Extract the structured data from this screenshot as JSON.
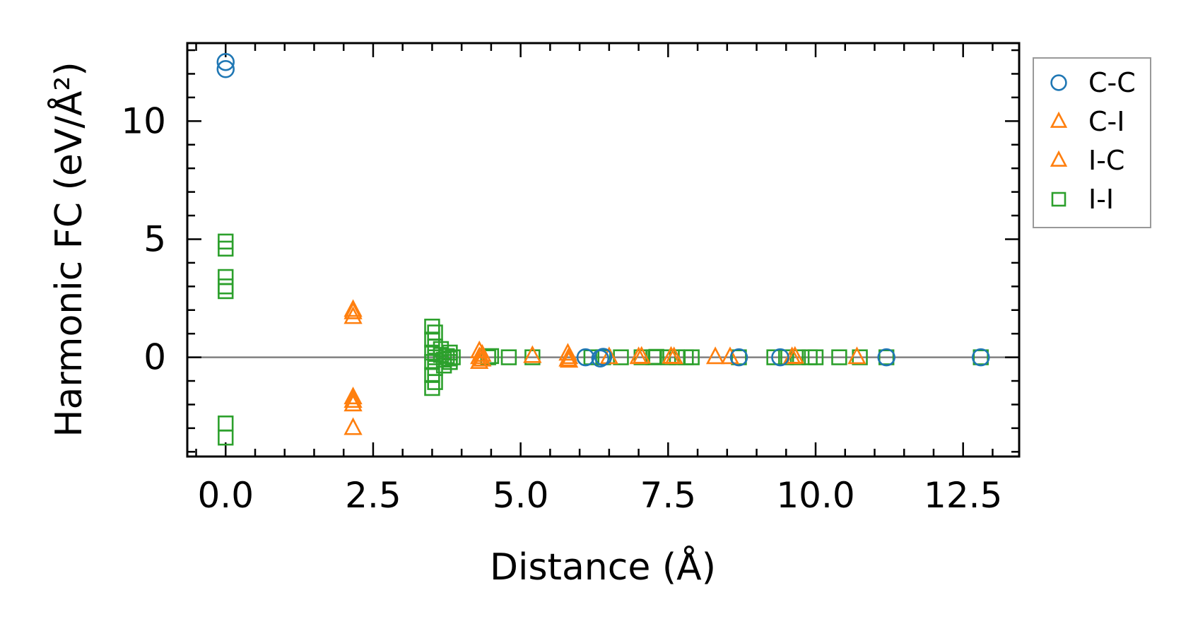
{
  "chart_data": {
    "type": "scatter",
    "title": "",
    "xlabel": "Distance (Å)",
    "ylabel": "Harmonic FC (eV/Å²)",
    "xlim": [
      -0.65,
      13.45
    ],
    "ylim": [
      -4.2,
      13.3
    ],
    "xticks": [
      0.0,
      2.5,
      5.0,
      7.5,
      10.0,
      12.5
    ],
    "xtick_labels": [
      "0.0",
      "2.5",
      "5.0",
      "7.5",
      "10.0",
      "12.5"
    ],
    "yticks": [
      0,
      5,
      10
    ],
    "ytick_labels": [
      "0",
      "5",
      "10"
    ],
    "zero_line": true,
    "grid": false,
    "legend_position": "outside-right",
    "series": [
      {
        "name": "C-C",
        "marker": "circle",
        "color": "#1f77b4",
        "points": [
          [
            0.0,
            12.5
          ],
          [
            0.0,
            12.2
          ],
          [
            6.1,
            0.0
          ],
          [
            6.35,
            -0.05
          ],
          [
            6.4,
            0.02
          ],
          [
            8.7,
            0.0
          ],
          [
            9.4,
            0.0
          ],
          [
            11.2,
            0.0
          ],
          [
            12.8,
            0.0
          ]
        ]
      },
      {
        "name": "C-I",
        "marker": "triangle",
        "color": "#ff7f0e",
        "points": [
          [
            2.16,
            2.0
          ],
          [
            2.16,
            1.7
          ],
          [
            2.16,
            -1.7
          ],
          [
            2.16,
            -2.0
          ],
          [
            2.16,
            -3.0
          ],
          [
            4.3,
            0.25
          ],
          [
            4.3,
            0.0
          ],
          [
            4.3,
            -0.2
          ],
          [
            5.2,
            0.05
          ],
          [
            5.8,
            0.15
          ],
          [
            5.8,
            -0.1
          ],
          [
            6.5,
            0.0
          ],
          [
            7.0,
            0.0
          ],
          [
            7.6,
            0.0
          ],
          [
            8.3,
            0.0
          ],
          [
            8.55,
            0.0
          ],
          [
            9.6,
            0.0
          ],
          [
            10.7,
            0.0
          ]
        ]
      },
      {
        "name": "I-C",
        "marker": "triangle",
        "color": "#ff7f0e",
        "points": [
          [
            2.16,
            1.9
          ],
          [
            2.16,
            -1.85
          ],
          [
            4.35,
            0.1
          ],
          [
            4.35,
            -0.1
          ],
          [
            5.82,
            0.0
          ],
          [
            5.82,
            -0.15
          ],
          [
            7.05,
            0.02
          ],
          [
            7.55,
            0.02
          ],
          [
            9.65,
            0.02
          ]
        ]
      },
      {
        "name": "I-I",
        "marker": "square",
        "color": "#2ca02c",
        "points": [
          [
            0.0,
            4.9
          ],
          [
            0.0,
            4.6
          ],
          [
            0.0,
            3.4
          ],
          [
            0.0,
            3.0
          ],
          [
            0.0,
            2.8
          ],
          [
            0.0,
            -2.8
          ],
          [
            0.0,
            -3.4
          ],
          [
            3.5,
            1.3
          ],
          [
            3.55,
            1.05
          ],
          [
            3.5,
            0.75
          ],
          [
            3.55,
            0.45
          ],
          [
            3.5,
            0.2
          ],
          [
            3.55,
            0.0
          ],
          [
            3.5,
            -0.2
          ],
          [
            3.55,
            -0.45
          ],
          [
            3.5,
            -0.75
          ],
          [
            3.55,
            -1.05
          ],
          [
            3.5,
            -1.3
          ],
          [
            3.65,
            0.1
          ],
          [
            3.7,
            -0.1
          ],
          [
            3.75,
            0.05
          ],
          [
            3.8,
            -0.05
          ],
          [
            3.85,
            0.0
          ],
          [
            3.65,
            0.35
          ],
          [
            3.7,
            -0.35
          ],
          [
            3.8,
            0.2
          ],
          [
            3.8,
            -0.2
          ],
          [
            4.45,
            0.0
          ],
          [
            4.5,
            0.05
          ],
          [
            4.8,
            0.0
          ],
          [
            5.2,
            0.0
          ],
          [
            6.2,
            0.0
          ],
          [
            6.4,
            0.0
          ],
          [
            6.7,
            0.0
          ],
          [
            7.05,
            0.0
          ],
          [
            7.25,
            0.0
          ],
          [
            7.3,
            0.02
          ],
          [
            7.5,
            0.0
          ],
          [
            7.65,
            0.0
          ],
          [
            7.8,
            0.0
          ],
          [
            7.9,
            0.0
          ],
          [
            8.7,
            0.0
          ],
          [
            9.3,
            0.0
          ],
          [
            9.5,
            0.0
          ],
          [
            9.7,
            0.0
          ],
          [
            9.9,
            0.0
          ],
          [
            10.0,
            0.0
          ],
          [
            10.4,
            0.0
          ],
          [
            10.75,
            0.0
          ],
          [
            11.2,
            0.0
          ],
          [
            12.8,
            0.0
          ]
        ]
      }
    ]
  }
}
